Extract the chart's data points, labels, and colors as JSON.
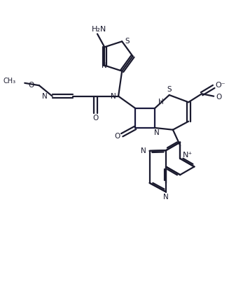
{
  "bg_color": "#ffffff",
  "line_color": "#1a1a2e",
  "bond_width": 1.6,
  "text_color": "#1a1a2e",
  "figsize": [
    3.57,
    4.25
  ],
  "dpi": 100,
  "xlim": [
    0,
    10
  ],
  "ylim": [
    0,
    11.9
  ]
}
